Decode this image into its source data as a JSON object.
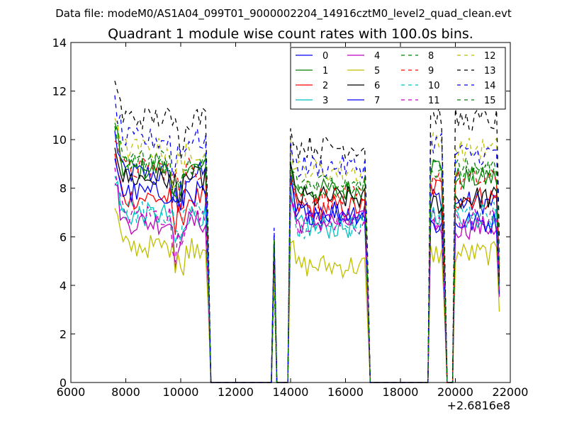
{
  "suptitle": "Data file: modeM0/AS1A04_099T01_9000002204_14916cztM0_level2_quad_clean.evt",
  "chart_data": {
    "type": "line",
    "title": "Quadrant 1 module wise count rates with 100.0s bins.",
    "xlabel": "",
    "ylabel": "",
    "x_offset_label": "+2.6816e8",
    "xlim": [
      6000,
      22000
    ],
    "ylim": [
      0,
      14
    ],
    "x_ticks": [
      6000,
      8000,
      10000,
      12000,
      14000,
      16000,
      18000,
      20000,
      22000
    ],
    "y_ticks": [
      0,
      2,
      4,
      6,
      8,
      10,
      12,
      14
    ],
    "legend_position": "top-right",
    "legend_columns": 4,
    "segments_note": "Series sampled at 100 s bins; rates drop to 0 in gaps between observation segments.",
    "series": [
      {
        "name": "0",
        "color": "#0000ff",
        "dash": "solid",
        "levels": [
          8.6,
          7.0,
          7.6,
          7.4
        ]
      },
      {
        "name": "1",
        "color": "#008000",
        "dash": "solid",
        "levels": [
          8.8,
          7.9,
          8.9,
          8.4
        ]
      },
      {
        "name": "2",
        "color": "#ff0000",
        "dash": "solid",
        "levels": [
          7.6,
          7.2,
          8.0,
          7.6
        ]
      },
      {
        "name": "3",
        "color": "#00bfbf",
        "dash": "solid",
        "levels": [
          6.9,
          6.4,
          7.0,
          6.8
        ]
      },
      {
        "name": "4",
        "color": "#bf00bf",
        "dash": "solid",
        "levels": [
          6.6,
          6.6,
          6.5,
          6.4
        ]
      },
      {
        "name": "5",
        "color": "#bfbf00",
        "dash": "solid",
        "levels": [
          5.6,
          4.8,
          5.3,
          5.3
        ]
      },
      {
        "name": "6",
        "color": "#000000",
        "dash": "solid",
        "levels": [
          8.4,
          7.6,
          7.4,
          7.6
        ]
      },
      {
        "name": "7",
        "color": "#0000ff",
        "dash": "solid",
        "levels": [
          7.8,
          7.0,
          6.5,
          6.6
        ]
      },
      {
        "name": "8",
        "color": "#008000",
        "dash": "dashed",
        "levels": [
          9.2,
          8.0,
          8.8,
          8.8
        ]
      },
      {
        "name": "9",
        "color": "#ff0000",
        "dash": "dashed",
        "levels": [
          8.8,
          7.6,
          8.5,
          8.3
        ]
      },
      {
        "name": "10",
        "color": "#00bfbf",
        "dash": "dashed",
        "levels": [
          7.0,
          6.4,
          6.8,
          7.0
        ]
      },
      {
        "name": "11",
        "color": "#bf00bf",
        "dash": "dashed",
        "levels": [
          6.9,
          6.5,
          6.7,
          6.7
        ]
      },
      {
        "name": "12",
        "color": "#bfbf00",
        "dash": "dashed",
        "levels": [
          9.6,
          8.7,
          9.9,
          9.6
        ]
      },
      {
        "name": "13",
        "color": "#000000",
        "dash": "dashed",
        "levels": [
          10.9,
          9.7,
          11.0,
          10.8
        ]
      },
      {
        "name": "14",
        "color": "#0000ff",
        "dash": "dashed",
        "levels": [
          10.0,
          8.9,
          9.9,
          9.4
        ]
      },
      {
        "name": "15",
        "color": "#008000",
        "dash": "dashed",
        "levels": [
          9.0,
          8.1,
          8.8,
          8.7
        ]
      }
    ],
    "observation_segments": [
      {
        "start": 7600,
        "end": 11000
      },
      {
        "start": 13950,
        "end": 16850
      },
      {
        "start": 19050,
        "end": 19600
      },
      {
        "start": 20000,
        "end": 21600
      }
    ],
    "spike": {
      "x": 13400,
      "peak_range": [
        4.0,
        6.4
      ]
    }
  }
}
